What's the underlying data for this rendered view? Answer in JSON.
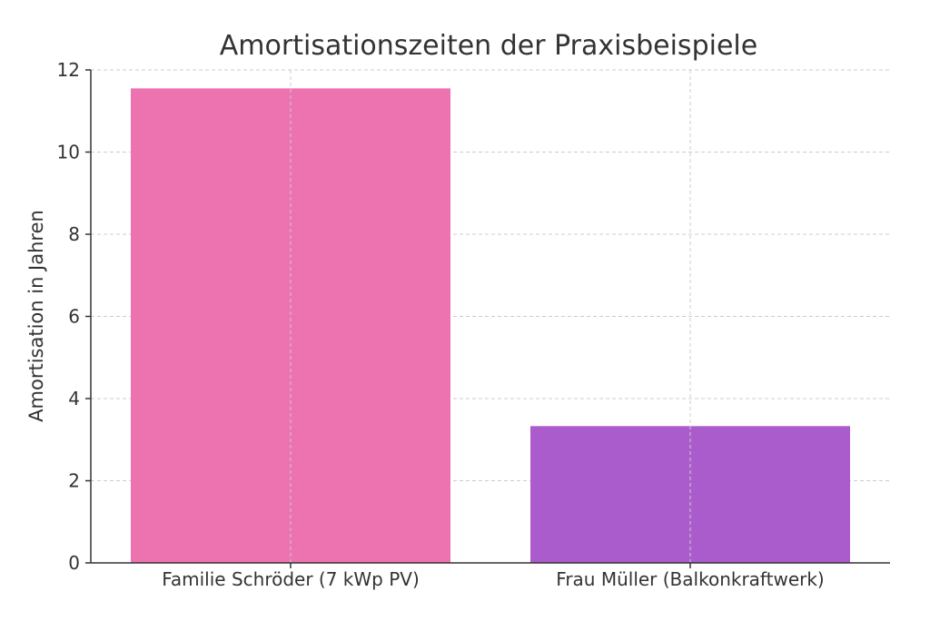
{
  "chart_data": {
    "type": "bar",
    "title": "Amortisationszeiten der Praxisbeispiele",
    "xlabel": "",
    "ylabel": "Amortisation in Jahren",
    "categories": [
      "Familie Schröder (7 kWp PV)",
      "Frau Müller (Balkonkraftwerk)"
    ],
    "values": [
      11.55,
      3.33
    ],
    "colors": [
      "#ec72b0",
      "#ab5ccc"
    ],
    "ylim": [
      0,
      12
    ],
    "yticks": [
      0,
      2,
      4,
      6,
      8,
      10,
      12
    ],
    "grid": true,
    "legend": "none"
  }
}
